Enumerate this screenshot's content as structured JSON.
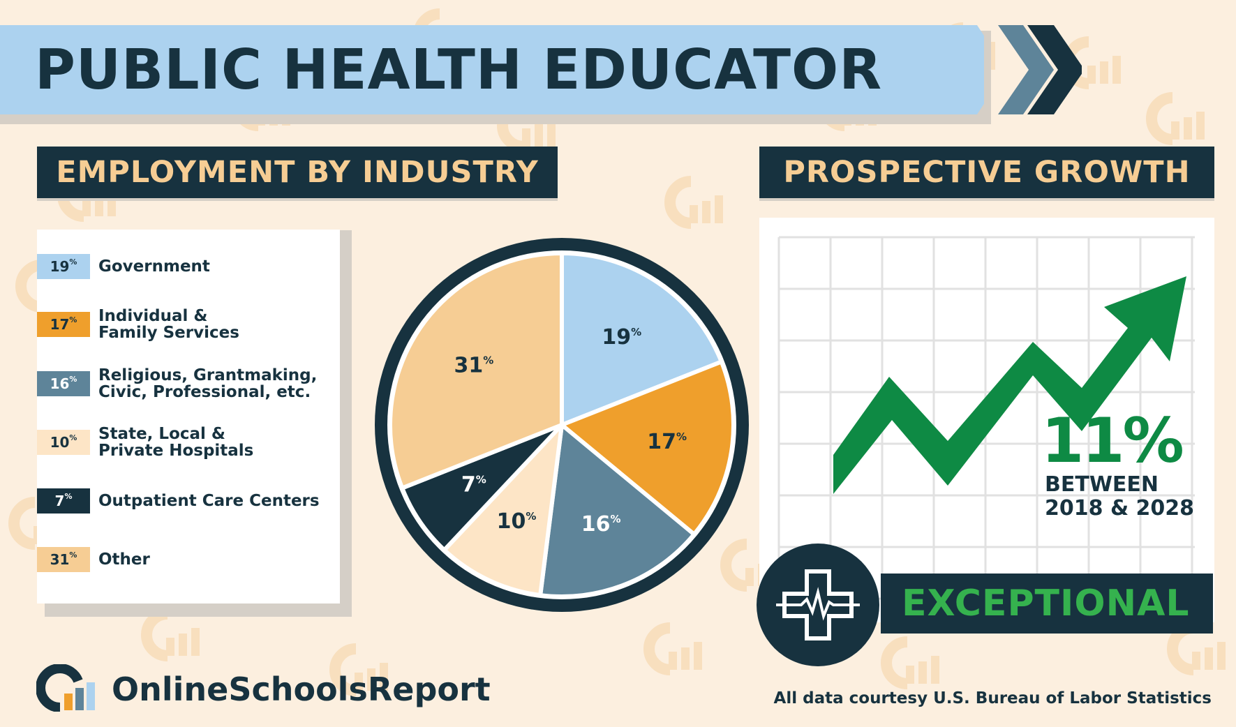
{
  "title": "PUBLIC HEALTH EDUCATOR",
  "employment_header": "EMPLOYMENT BY INDUSTRY",
  "growth_header": "PROSPECTIVE GROWTH",
  "chart_data": {
    "type": "pie",
    "percent_unit": "%",
    "slices": [
      {
        "label_lines": [
          "Government"
        ],
        "value": 19,
        "color": "#acd2ef"
      },
      {
        "label_lines": [
          "Individual &",
          "Family Services"
        ],
        "value": 17,
        "color": "#ef9f2c"
      },
      {
        "label_lines": [
          "Religious, Grantmaking,",
          "Civic, Professional, etc."
        ],
        "value": 16,
        "color": "#5e8499"
      },
      {
        "label_lines": [
          "State, Local &",
          "Private Hospitals"
        ],
        "value": 10,
        "color": "#fde5c6"
      },
      {
        "label_lines": [
          "Outpatient Care Centers"
        ],
        "value": 7,
        "color": "#17323f"
      },
      {
        "label_lines": [
          "Other"
        ],
        "value": 31,
        "color": "#f6cd94"
      }
    ]
  },
  "growth": {
    "value": "11%",
    "caption_lines": [
      "BETWEEN",
      "2018 & 2028"
    ],
    "rating": "EXCEPTIONAL",
    "arrow_color": "#0e8a44",
    "rating_color": "#35b24e"
  },
  "footer": {
    "brand": "OnlineSchoolsReport",
    "source": "All data courtesy U.S. Bureau of Labor Statistics"
  },
  "colors": {
    "navy": "#17323f",
    "background": "#fcefdf",
    "banner_blue": "#acd2ef",
    "header_text": "#f6cd94"
  }
}
